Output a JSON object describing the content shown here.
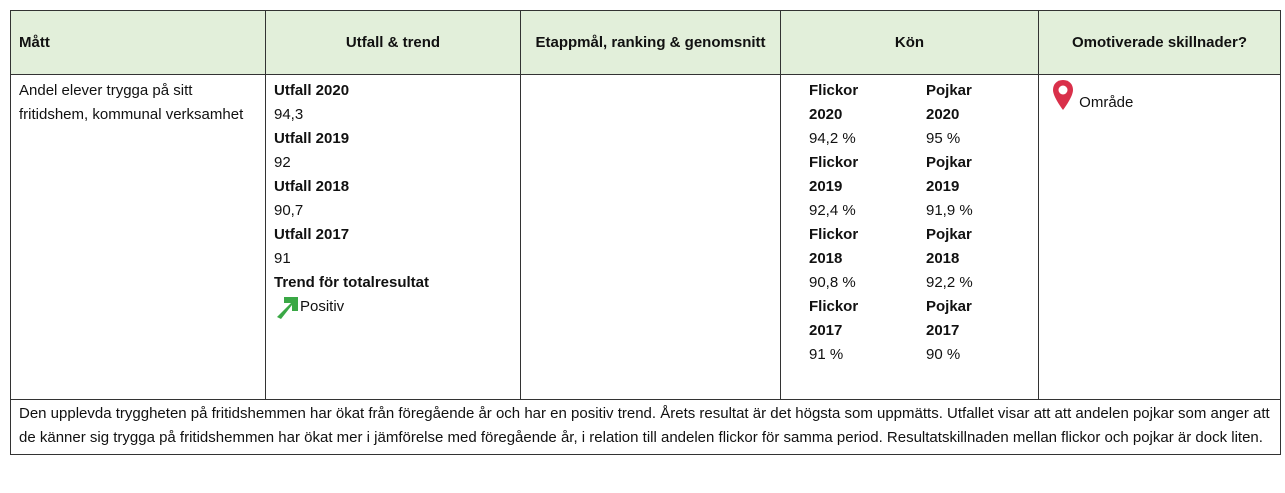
{
  "header": {
    "columns": [
      "Mått",
      "Utfall & trend",
      "Etappmål, ranking & genomsnitt",
      "Kön",
      "Omotiverade skillnader?"
    ]
  },
  "row": {
    "matt": "Andel elever trygga på sitt fritidshem, kommunal verksamhet",
    "utfall": [
      {
        "label": "Utfall 2020",
        "value": "94,3"
      },
      {
        "label": "Utfall 2019",
        "value": "92"
      },
      {
        "label": "Utfall 2018",
        "value": "90,7"
      },
      {
        "label": "Utfall 2017",
        "value": "91"
      }
    ],
    "trend_label": "Trend för totalresultat",
    "trend": "Positiv",
    "kon": [
      {
        "flickor_label": "Flickor 2020",
        "flickor": "94,2 %",
        "pojkar_label": "Pojkar 2020",
        "pojkar": "95 %"
      },
      {
        "flickor_label": "Flickor 2019",
        "flickor": "92,4 %",
        "pojkar_label": "Pojkar 2019",
        "pojkar": "91,9 %"
      },
      {
        "flickor_label": "Flickor 2018",
        "flickor": "90,8 %",
        "pojkar_label": "Pojkar 2018",
        "pojkar": "92,2 %"
      },
      {
        "flickor_label": "Flickor 2017",
        "flickor": "91 %",
        "pojkar_label": "Pojkar 2017",
        "pojkar": "90 %"
      }
    ],
    "omotiverade": "Område"
  },
  "footer": "Den upplevda tryggheten på fritidshemmen har ökat från föregående år och har en positiv trend. Årets resultat är det högsta som uppmätts. Utfallet visar att att andelen pojkar som anger att de känner sig trygga på fritidshemmen har ökat mer i jämförelse med föregående år, i relation till andelen flickor för samma period. Resultatskillnaden mellan flickor och pojkar är dock liten."
}
